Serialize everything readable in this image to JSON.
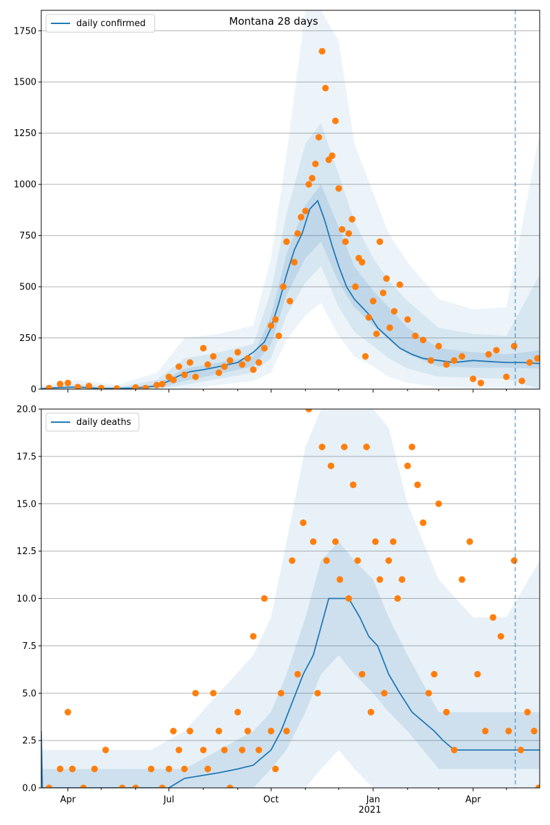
{
  "figure": {
    "title": "Montana 28 days"
  },
  "colors": {
    "line": "#1f77b4",
    "band": "#1f77b4",
    "points": "#ff7f0e",
    "grid": "#b0b0b0",
    "vline": "#1f77b4"
  },
  "chart_data": [
    {
      "type": "line",
      "title": "Montana 28 days",
      "xlabel": "",
      "ylabel": "",
      "x_range": [
        "2020-03-08",
        "2021-05-31"
      ],
      "ylim": [
        0,
        1850
      ],
      "yticks": [
        0,
        250,
        500,
        750,
        1000,
        1250,
        1500,
        1750
      ],
      "grid": "horizontal",
      "legend": {
        "placement": "top-left",
        "entries": [
          "daily confirmed"
        ]
      },
      "forecast_start": "2021-05-09",
      "series": [
        {
          "name": "daily confirmed",
          "style": "line",
          "x": [
            "2020-03-08",
            "2020-03-25",
            "2020-04-10",
            "2020-05-01",
            "2020-06-01",
            "2020-06-20",
            "2020-07-01",
            "2020-07-10",
            "2020-07-20",
            "2020-08-01",
            "2020-08-15",
            "2020-09-01",
            "2020-09-15",
            "2020-09-25",
            "2020-10-01",
            "2020-10-08",
            "2020-10-15",
            "2020-10-22",
            "2020-10-29",
            "2020-11-05",
            "2020-11-12",
            "2020-11-18",
            "2020-11-25",
            "2020-12-01",
            "2020-12-08",
            "2020-12-15",
            "2020-12-22",
            "2020-12-29",
            "2021-01-05",
            "2021-01-15",
            "2021-01-25",
            "2021-02-05",
            "2021-02-15",
            "2021-03-01",
            "2021-03-15",
            "2021-04-01",
            "2021-04-15",
            "2021-05-01",
            "2021-05-15",
            "2021-05-31"
          ],
          "values": [
            2,
            8,
            10,
            3,
            5,
            15,
            40,
            65,
            85,
            95,
            110,
            130,
            180,
            230,
            300,
            420,
            560,
            680,
            760,
            880,
            920,
            830,
            700,
            600,
            500,
            440,
            400,
            360,
            300,
            250,
            200,
            170,
            150,
            140,
            130,
            140,
            135,
            130,
            130,
            125
          ]
        },
        {
          "name": "",
          "style": "band",
          "label": "inner 50% interval",
          "x": [
            "2020-03-08",
            "2020-04-10",
            "2020-05-15",
            "2020-06-20",
            "2020-07-15",
            "2020-08-15",
            "2020-09-15",
            "2020-10-01",
            "2020-10-15",
            "2020-11-01",
            "2020-11-15",
            "2020-12-01",
            "2020-12-15",
            "2021-01-01",
            "2021-01-15",
            "2021-02-01",
            "2021-03-01",
            "2021-04-01",
            "2021-05-01",
            "2021-05-31"
          ],
          "lower": [
            0,
            5,
            0,
            5,
            40,
            75,
            110,
            220,
            460,
            640,
            720,
            520,
            400,
            310,
            240,
            170,
            110,
            105,
            105,
            100
          ],
          "upper": [
            5,
            15,
            5,
            25,
            100,
            130,
            160,
            360,
            660,
            900,
            1000,
            790,
            600,
            480,
            400,
            300,
            200,
            180,
            170,
            190
          ]
        },
        {
          "name": "",
          "style": "band",
          "label": "middle interval",
          "x": [
            "2020-03-08",
            "2020-04-10",
            "2020-05-15",
            "2020-06-20",
            "2020-07-15",
            "2020-08-15",
            "2020-09-15",
            "2020-10-01",
            "2020-10-15",
            "2020-11-01",
            "2020-11-15",
            "2020-12-01",
            "2020-12-15",
            "2021-01-01",
            "2021-01-15",
            "2021-02-01",
            "2021-03-01",
            "2021-04-01",
            "2021-05-01",
            "2021-05-31"
          ],
          "lower": [
            0,
            0,
            0,
            0,
            20,
            50,
            80,
            150,
            360,
            520,
            600,
            400,
            280,
            210,
            150,
            100,
            60,
            55,
            50,
            0
          ],
          "upper": [
            10,
            25,
            10,
            45,
            150,
            180,
            220,
            480,
            860,
            1200,
            1300,
            1050,
            820,
            640,
            530,
            430,
            300,
            270,
            260,
            560
          ]
        },
        {
          "name": "",
          "style": "band",
          "label": "outer interval",
          "x": [
            "2020-03-08",
            "2020-04-10",
            "2020-05-15",
            "2020-06-20",
            "2020-07-15",
            "2020-08-15",
            "2020-09-15",
            "2020-10-01",
            "2020-10-15",
            "2020-11-01",
            "2020-11-15",
            "2020-12-01",
            "2020-12-15",
            "2021-01-01",
            "2021-01-15",
            "2021-02-01",
            "2021-03-01",
            "2021-04-01",
            "2021-05-01",
            "2021-05-31"
          ],
          "lower": [
            0,
            0,
            0,
            0,
            0,
            20,
            40,
            80,
            240,
            360,
            420,
            260,
            160,
            110,
            60,
            30,
            10,
            5,
            5,
            0
          ],
          "upper": [
            20,
            45,
            20,
            80,
            250,
            270,
            310,
            640,
            1150,
            1850,
            1850,
            1700,
            1200,
            960,
            760,
            620,
            440,
            390,
            400,
            1250
          ]
        },
        {
          "name": "",
          "style": "scatter",
          "label": "observed",
          "x": [
            "2020-03-15",
            "2020-03-25",
            "2020-04-01",
            "2020-04-10",
            "2020-04-20",
            "2020-05-01",
            "2020-05-15",
            "2020-06-01",
            "2020-06-10",
            "2020-06-20",
            "2020-06-25",
            "2020-07-01",
            "2020-07-05",
            "2020-07-10",
            "2020-07-15",
            "2020-07-20",
            "2020-07-25",
            "2020-08-01",
            "2020-08-05",
            "2020-08-10",
            "2020-08-15",
            "2020-08-20",
            "2020-08-25",
            "2020-09-01",
            "2020-09-05",
            "2020-09-10",
            "2020-09-15",
            "2020-09-20",
            "2020-09-25",
            "2020-10-01",
            "2020-10-05",
            "2020-10-08",
            "2020-10-12",
            "2020-10-15",
            "2020-10-18",
            "2020-10-22",
            "2020-10-25",
            "2020-10-28",
            "2020-11-01",
            "2020-11-04",
            "2020-11-07",
            "2020-11-10",
            "2020-11-13",
            "2020-11-16",
            "2020-11-19",
            "2020-11-22",
            "2020-11-25",
            "2020-11-28",
            "2020-12-01",
            "2020-12-04",
            "2020-12-07",
            "2020-12-10",
            "2020-12-13",
            "2020-12-16",
            "2020-12-19",
            "2020-12-22",
            "2020-12-25",
            "2020-12-28",
            "2021-01-01",
            "2021-01-04",
            "2021-01-07",
            "2021-01-10",
            "2021-01-13",
            "2021-01-16",
            "2021-01-20",
            "2021-01-25",
            "2021-02-01",
            "2021-02-08",
            "2021-02-15",
            "2021-02-22",
            "2021-03-01",
            "2021-03-08",
            "2021-03-15",
            "2021-03-22",
            "2021-04-01",
            "2021-04-08",
            "2021-04-15",
            "2021-04-22",
            "2021-05-01",
            "2021-05-08",
            "2021-05-15",
            "2021-05-22",
            "2021-05-29"
          ],
          "values": [
            5,
            25,
            30,
            10,
            15,
            5,
            3,
            8,
            5,
            20,
            25,
            60,
            45,
            110,
            70,
            130,
            60,
            200,
            120,
            160,
            80,
            110,
            140,
            180,
            120,
            150,
            95,
            130,
            200,
            310,
            340,
            260,
            500,
            720,
            430,
            620,
            760,
            840,
            870,
            1000,
            1030,
            1100,
            1230,
            1650,
            1470,
            1120,
            1140,
            1310,
            980,
            780,
            720,
            760,
            830,
            500,
            640,
            620,
            160,
            350,
            430,
            270,
            720,
            470,
            540,
            300,
            380,
            510,
            340,
            260,
            240,
            140,
            210,
            120,
            140,
            160,
            50,
            30,
            170,
            190,
            60,
            210,
            40,
            130,
            150
          ]
        }
      ]
    },
    {
      "type": "line",
      "title": "",
      "xlabel": "",
      "ylabel": "",
      "x_range": [
        "2020-03-08",
        "2021-05-31"
      ],
      "ylim": [
        0,
        20
      ],
      "yticks": [
        0.0,
        2.5,
        5.0,
        7.5,
        10.0,
        12.5,
        15.0,
        17.5,
        20.0
      ],
      "xticks": [
        "2020-04-01",
        "2020-07-01",
        "2020-10-01",
        "2021-01-01",
        "2021-04-01"
      ],
      "xtick_labels": [
        "Apr",
        "Jul",
        "Oct",
        "Jan",
        "Apr"
      ],
      "x_year_label": "2021",
      "grid": "horizontal",
      "legend": {
        "placement": "top-left",
        "entries": [
          "daily deaths"
        ]
      },
      "forecast_start": "2021-05-09",
      "series": [
        {
          "name": "daily deaths",
          "style": "line",
          "x": [
            "2020-03-08",
            "2020-03-09",
            "2020-07-01",
            "2020-07-15",
            "2020-08-15",
            "2020-09-01",
            "2020-09-15",
            "2020-10-01",
            "2020-10-10",
            "2020-10-20",
            "2020-10-30",
            "2020-11-08",
            "2020-11-15",
            "2020-11-22",
            "2020-12-01",
            "2020-12-10",
            "2020-12-20",
            "2020-12-28",
            "2021-01-05",
            "2021-01-15",
            "2021-01-25",
            "2021-02-05",
            "2021-02-15",
            "2021-02-25",
            "2021-03-05",
            "2021-03-15",
            "2021-04-01",
            "2021-04-15",
            "2021-05-01",
            "2021-05-15",
            "2021-05-31"
          ],
          "values": [
            3,
            0,
            0,
            0.5,
            0.8,
            1,
            1.2,
            2,
            3,
            4.5,
            6,
            7,
            8.5,
            10,
            10,
            10,
            9,
            8,
            7.5,
            6,
            5,
            4,
            3.5,
            3,
            2.5,
            2,
            2,
            2,
            2,
            2,
            2
          ]
        },
        {
          "name": "",
          "style": "band",
          "label": "inner 50% interval",
          "x": [
            "2020-03-08",
            "2020-04-15",
            "2020-06-15",
            "2020-07-15",
            "2020-08-15",
            "2020-09-15",
            "2020-10-01",
            "2020-10-15",
            "2020-11-01",
            "2020-11-15",
            "2020-12-01",
            "2020-12-15",
            "2021-01-01",
            "2021-01-15",
            "2021-02-01",
            "2021-03-01",
            "2021-04-01",
            "2021-05-01",
            "2021-05-31"
          ],
          "lower": [
            0,
            0,
            0,
            0,
            0,
            0,
            1,
            2,
            4,
            6,
            7,
            6,
            5,
            4,
            3,
            1,
            1,
            1,
            1
          ],
          "upper": [
            1,
            1,
            1,
            1,
            2,
            3,
            4,
            6,
            9,
            12,
            13,
            12,
            11,
            9,
            7,
            4,
            4,
            4,
            4
          ]
        },
        {
          "name": "",
          "style": "band",
          "label": "outer interval",
          "x": [
            "2020-03-08",
            "2020-04-15",
            "2020-06-15",
            "2020-07-15",
            "2020-08-15",
            "2020-09-15",
            "2020-10-01",
            "2020-10-15",
            "2020-11-01",
            "2020-11-15",
            "2020-12-01",
            "2020-12-15",
            "2021-01-01",
            "2021-01-15",
            "2021-02-01",
            "2021-03-01",
            "2021-04-01",
            "2021-05-01",
            "2021-05-31"
          ],
          "lower": [
            0,
            0,
            0,
            0,
            0,
            0,
            0,
            0,
            0,
            1,
            2,
            1,
            0,
            0,
            0,
            0,
            0,
            0,
            0
          ],
          "upper": [
            2,
            2,
            2,
            3,
            5,
            7,
            9,
            13,
            18,
            20,
            20,
            20,
            20,
            19,
            15,
            11,
            9,
            9,
            12
          ]
        },
        {
          "name": "",
          "style": "scatter",
          "label": "observed",
          "x": [
            "2020-03-15",
            "2020-03-25",
            "2020-04-01",
            "2020-04-05",
            "2020-04-15",
            "2020-04-25",
            "2020-05-05",
            "2020-05-20",
            "2020-06-01",
            "2020-06-15",
            "2020-06-25",
            "2020-07-01",
            "2020-07-05",
            "2020-07-10",
            "2020-07-15",
            "2020-07-20",
            "2020-07-25",
            "2020-08-01",
            "2020-08-05",
            "2020-08-10",
            "2020-08-15",
            "2020-08-20",
            "2020-08-25",
            "2020-09-01",
            "2020-09-05",
            "2020-09-10",
            "2020-09-15",
            "2020-09-20",
            "2020-09-25",
            "2020-10-01",
            "2020-10-05",
            "2020-10-10",
            "2020-10-15",
            "2020-10-20",
            "2020-10-25",
            "2020-10-30",
            "2020-11-04",
            "2020-11-08",
            "2020-11-12",
            "2020-11-16",
            "2020-11-20",
            "2020-11-24",
            "2020-11-28",
            "2020-12-02",
            "2020-12-06",
            "2020-12-10",
            "2020-12-14",
            "2020-12-18",
            "2020-12-22",
            "2020-12-26",
            "2020-12-30",
            "2021-01-03",
            "2021-01-07",
            "2021-01-11",
            "2021-01-15",
            "2021-01-19",
            "2021-01-23",
            "2021-01-27",
            "2021-02-01",
            "2021-02-05",
            "2021-02-10",
            "2021-02-15",
            "2021-02-20",
            "2021-02-25",
            "2021-03-01",
            "2021-03-08",
            "2021-03-15",
            "2021-03-22",
            "2021-03-29",
            "2021-04-05",
            "2021-04-12",
            "2021-04-19",
            "2021-04-26",
            "2021-05-03",
            "2021-05-08",
            "2021-05-14",
            "2021-05-20",
            "2021-05-26",
            "2021-05-30"
          ],
          "values": [
            0,
            1,
            4,
            1,
            0,
            1,
            2,
            0,
            0,
            1,
            0,
            1,
            3,
            2,
            1,
            3,
            5,
            2,
            1,
            5,
            3,
            2,
            0,
            4,
            2,
            3,
            8,
            2,
            10,
            3,
            1,
            5,
            3,
            12,
            6,
            14,
            20,
            13,
            5,
            18,
            12,
            17,
            13,
            11,
            18,
            10,
            16,
            12,
            6,
            18,
            4,
            13,
            11,
            5,
            12,
            13,
            10,
            11,
            17,
            18,
            16,
            14,
            5,
            6,
            15,
            4,
            2,
            11,
            13,
            6,
            3,
            9,
            8,
            3,
            12,
            2,
            4,
            3,
            0
          ]
        }
      ]
    }
  ]
}
